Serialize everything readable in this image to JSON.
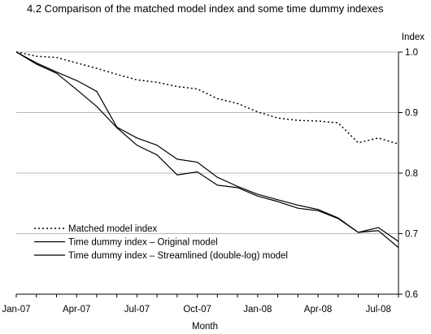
{
  "chart_data": {
    "type": "line",
    "title": "4.2  Comparison of the matched model index and some time dummy indexes",
    "xlabel": "Month",
    "ylabel": "Index",
    "x": [
      "Jan-07",
      "Feb-07",
      "Mar-07",
      "Apr-07",
      "May-07",
      "Jun-07",
      "Jul-07",
      "Aug-07",
      "Sep-07",
      "Oct-07",
      "Nov-07",
      "Dec-07",
      "Jan-08",
      "Feb-08",
      "Mar-08",
      "Apr-08",
      "May-08",
      "Jun-08",
      "Jul-08",
      "Aug-08"
    ],
    "x_tick_labels": [
      "Jan-07",
      "Apr-07",
      "Jul-07",
      "Oct-07",
      "Jan-08",
      "Apr-08",
      "Jul-08"
    ],
    "ylim": [
      0.6,
      1.0
    ],
    "y_tick_labels": [
      "0.6",
      "0.7",
      "0.8",
      "0.9",
      "1.0"
    ],
    "y_axis_side": "right",
    "grid": "horizontal",
    "legend_position": "bottom-left",
    "series": [
      {
        "name": "Matched model index",
        "style": "dotted",
        "values": [
          1.0,
          0.993,
          0.991,
          0.982,
          0.973,
          0.963,
          0.954,
          0.95,
          0.943,
          0.939,
          0.923,
          0.915,
          0.901,
          0.891,
          0.887,
          0.886,
          0.883,
          0.85,
          0.858,
          0.848
        ]
      },
      {
        "name": "Time dummy index – Original model",
        "style": "solid",
        "values": [
          1.0,
          0.982,
          0.967,
          0.953,
          0.935,
          0.876,
          0.858,
          0.846,
          0.823,
          0.818,
          0.793,
          0.778,
          0.765,
          0.756,
          0.747,
          0.74,
          0.726,
          0.702,
          0.71,
          0.687
        ]
      },
      {
        "name": "Time dummy index – Streamlined (double-log) model",
        "style": "solid",
        "values": [
          1.0,
          0.98,
          0.965,
          0.938,
          0.91,
          0.875,
          0.846,
          0.83,
          0.797,
          0.802,
          0.78,
          0.776,
          0.762,
          0.753,
          0.742,
          0.738,
          0.725,
          0.702,
          0.705,
          0.677
        ]
      }
    ]
  },
  "colors": {
    "lines": "#000000",
    "grid": "#b8b8b8",
    "background": "#ffffff"
  }
}
